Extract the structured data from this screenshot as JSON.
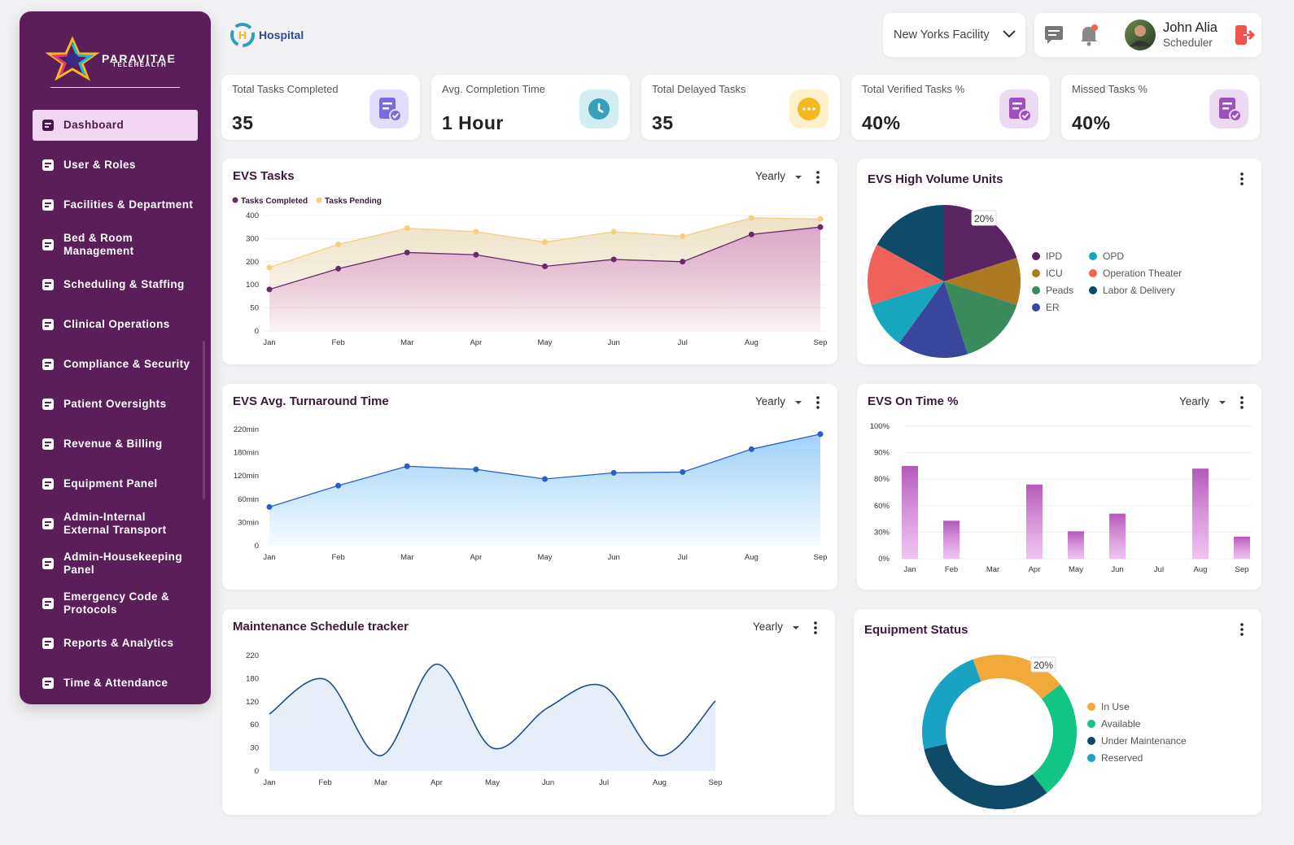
{
  "sidebar": {
    "brand": "PARAVITAE",
    "brand_sub": "TELEHEALTH",
    "active": 0,
    "menu": [
      "Dashboard",
      "User & Roles",
      "Facilities & Department",
      "Bed & Room Management",
      "Scheduling & Staffing",
      "Clinical Operations",
      "Compliance & Security",
      "Patient Oversights",
      "Revenue & Billing",
      "Equipment Panel",
      "Admin-Internal External Transport",
      "Admin-Housekeeping Panel",
      "Emergency Code & Protocols",
      "Reports & Analytics",
      "Time & Attendance"
    ]
  },
  "header": {
    "logo": "Hospital",
    "facility": "New Yorks Facility",
    "user_name": "John Alia",
    "user_role": "Scheduler"
  },
  "kpis": [
    {
      "label": "Total Tasks Completed",
      "value": "35",
      "color": "#7a6ae0",
      "bg": "#e2ddfa"
    },
    {
      "label": "Avg. Completion Time",
      "value": "1 Hour",
      "color": "#3a9fb8",
      "bg": "#d3eef2"
    },
    {
      "label": "Total Delayed Tasks",
      "value": "35",
      "color": "#f5b820",
      "bg": "#fdf1cc"
    },
    {
      "label": "Total Verified Tasks %",
      "value": "40%",
      "color": "#a04fc0",
      "bg": "#ecdaf3"
    },
    {
      "label": "Missed Tasks %",
      "value": "40%",
      "color": "#a04fc0",
      "bg": "#ecdaf3"
    }
  ],
  "chart_data": [
    {
      "type": "line",
      "title": "EVS Tasks",
      "period": "Yearly",
      "area": true,
      "grid": true,
      "categories": [
        "Jan",
        "Feb",
        "Mar",
        "Apr",
        "May",
        "Jun",
        "Jul",
        "Aug",
        "Sep"
      ],
      "series": [
        {
          "name": "Tasks Completed",
          "color": "#6b2a6b",
          "fill": "#d99ccb",
          "values": [
            90,
            170,
            240,
            230,
            180,
            210,
            200,
            318,
            350
          ]
        },
        {
          "name": "Tasks Pending",
          "color": "#f6cf7e",
          "fill": "#eadcbc",
          "values": [
            175,
            275,
            345,
            330,
            285,
            330,
            310,
            390,
            385
          ]
        }
      ],
      "ylim": [
        0,
        400
      ],
      "yticks": [
        0,
        50,
        100,
        200,
        300,
        400
      ]
    },
    {
      "type": "pie",
      "title": "EVS High Volume Units",
      "categories": [
        "IPD",
        "ICU",
        "Peads",
        "ER",
        "OPD",
        "Operation Theater",
        "Labor & Delivery"
      ],
      "values": [
        20,
        10,
        15,
        15,
        10,
        13,
        17
      ],
      "value_labels": [
        "20%",
        null,
        null,
        null,
        null,
        null,
        null
      ],
      "colors": [
        "#5b2463",
        "#ad7a22",
        "#3b8a5c",
        "#3a469c",
        "#18a6bf",
        "#f0635c",
        "#0f4a69"
      ]
    },
    {
      "type": "line",
      "title": "EVS Avg. Turnaround Time",
      "period": "Yearly",
      "area": true,
      "grid": false,
      "categories": [
        "Jan",
        "Feb",
        "Mar",
        "Apr",
        "May",
        "Jun",
        "Jul",
        "Aug",
        "Sep"
      ],
      "series": [
        {
          "name": "Turnaround",
          "color": "#2a5fc4",
          "fill": "#8ccaf8",
          "values": [
            50,
            95,
            145,
            137,
            112,
            128,
            130,
            186,
            212
          ]
        }
      ],
      "ylim": [
        0,
        220
      ],
      "yticks": [
        0,
        {
          "value": 30,
          "label": "30min"
        },
        {
          "value": 60,
          "label": "60min"
        },
        {
          "value": 120,
          "label": "120min"
        },
        {
          "value": 180,
          "label": "180min"
        },
        {
          "value": 220,
          "label": "220min"
        }
      ]
    },
    {
      "type": "bar",
      "title": "EVS On Time %",
      "period": "Yearly",
      "grid": true,
      "categories": [
        "Jan",
        "Feb",
        "Mar",
        "Apr",
        "May",
        "Jun",
        "Jul",
        "Aug",
        "Sep"
      ],
      "values": [
        85,
        43,
        null,
        76,
        31,
        51,
        null,
        84,
        25
      ],
      "color": "#b458b8",
      "ylim": [
        0,
        100
      ],
      "yticks": [
        {
          "value": 0,
          "label": "0%"
        },
        {
          "value": 30,
          "label": "30%"
        },
        {
          "value": 60,
          "label": "60%"
        },
        {
          "value": 80,
          "label": "80%"
        },
        {
          "value": 90,
          "label": "90%"
        },
        {
          "value": 100,
          "label": "100%"
        }
      ]
    },
    {
      "type": "line",
      "title": "Maintenance Schedule tracker",
      "period": "Yearly",
      "area": true,
      "smooth": true,
      "grid": false,
      "categories": [
        "Jan",
        "Feb",
        "Mar",
        "Apr",
        "May",
        "Jun",
        "Jul",
        "Aug",
        "Sep"
      ],
      "series": [
        {
          "name": "Maintenance",
          "color": "#1f4f88",
          "fill": "#e4ecf8",
          "values": [
            88,
            178,
            20,
            205,
            30,
            105,
            160,
            20,
            122
          ]
        }
      ],
      "ylim": [
        0,
        220
      ],
      "yticks": [
        0,
        30,
        60,
        120,
        180,
        220
      ]
    },
    {
      "type": "donut",
      "title": "Equipment Status",
      "categories": [
        "In Use",
        "Available",
        "Under Maintenance",
        "Reserved"
      ],
      "values": [
        20,
        25,
        32,
        23
      ],
      "value_labels": [
        "20%",
        null,
        null,
        null
      ],
      "colors": [
        "#f1a93a",
        "#12c584",
        "#0f4a69",
        "#1aa2c2"
      ]
    }
  ]
}
